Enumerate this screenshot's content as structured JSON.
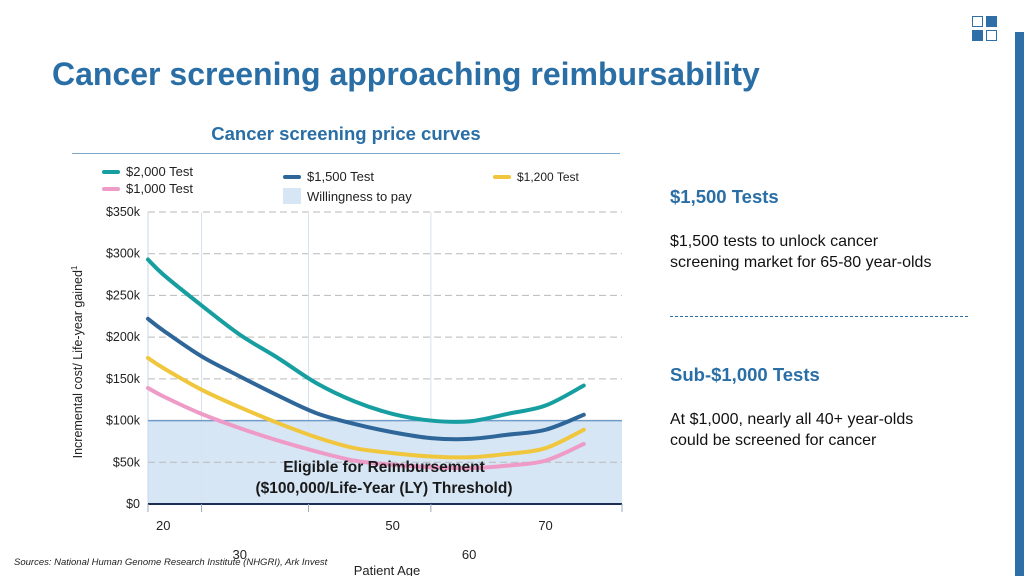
{
  "slide": {
    "title": "Cancer screening approaching reimbursability",
    "source": "Sources: National Human Genome Research Institute (NHGRI), Ark Invest"
  },
  "colors": {
    "brand_blue": "#2a6ea6",
    "series_2000": "#169ea0",
    "series_1500": "#2e6699",
    "series_1200": "#f0c63c",
    "series_1000": "#ee9bc8",
    "willingness_fill": "#d6e6f5"
  },
  "icons": {
    "logo": "squares-grid-logo"
  },
  "chart_data": {
    "type": "line",
    "title": "Cancer screening price curves",
    "xlabel": "Patient Age",
    "ylabel": "Incremental cost/ Life-year gained",
    "ylabel_superscript": "1",
    "y_ticks": [
      "$0",
      "$50k",
      "$100k",
      "$150k",
      "$200k",
      "$250k",
      "$300k",
      "$350k"
    ],
    "ylim": [
      0,
      350000
    ],
    "xlim": [
      18,
      80
    ],
    "x_ticks": [
      {
        "value": 20,
        "label": "20",
        "row": 1
      },
      {
        "value": 30,
        "label": "30",
        "row": 2
      },
      {
        "value": 50,
        "label": "50",
        "row": 1
      },
      {
        "value": 60,
        "label": "60",
        "row": 2
      },
      {
        "value": 70,
        "label": "70",
        "row": 1
      }
    ],
    "grid": true,
    "legend_position": "top",
    "x": [
      18,
      20,
      25,
      30,
      35,
      40,
      45,
      50,
      55,
      60,
      65,
      70,
      75
    ],
    "series": [
      {
        "name": "$2,000 Test",
        "color": "#169ea0",
        "values": [
          293000,
          275000,
          238000,
          203000,
          175000,
          145000,
          123000,
          108000,
          100000,
          99000,
          108000,
          118000,
          142000
        ]
      },
      {
        "name": "$1,500 Test",
        "color": "#2e6699",
        "values": [
          222000,
          208000,
          177000,
          153000,
          130000,
          109000,
          96000,
          86000,
          79000,
          78000,
          83000,
          89000,
          107000
        ]
      },
      {
        "name": "$1,200 Test",
        "color": "#f0c63c",
        "values": [
          175000,
          163000,
          137000,
          116000,
          97000,
          80000,
          67000,
          61000,
          57000,
          56000,
          60000,
          67000,
          89000
        ]
      },
      {
        "name": "$1,000 Test",
        "color": "#ee9bc8",
        "values": [
          139000,
          129000,
          108000,
          91000,
          76000,
          63000,
          52000,
          47000,
          44000,
          43000,
          46000,
          52000,
          72000
        ]
      }
    ],
    "band": {
      "name": "Willingness to pay",
      "y_max": 100000,
      "color": "#d6e6f5"
    },
    "annotation": {
      "line1": "Eligible for Reimbursement",
      "line2": "($100,000/Life-Year (LY) Threshold)"
    }
  },
  "panel": {
    "heading1": "$1,500 Tests",
    "text1": "$1,500 tests to unlock cancer\nscreening market for 65-80 year-olds",
    "heading2": "Sub-$1,000 Tests",
    "text2": "At $1,000, nearly all 40+ year-olds\n could be screened for cancer"
  }
}
